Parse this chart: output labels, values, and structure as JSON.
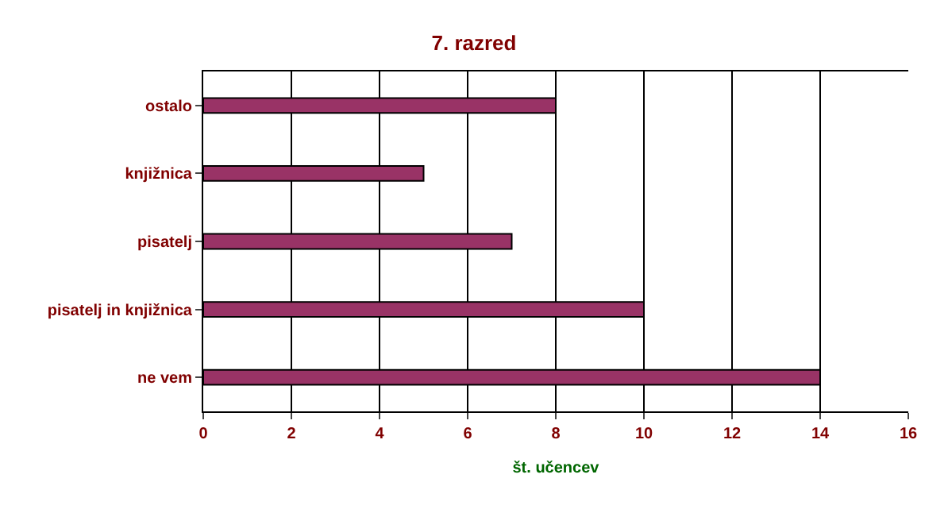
{
  "chart_data": {
    "type": "bar",
    "orientation": "horizontal",
    "title": "7. razred",
    "xlabel": "št. učencev",
    "categories": [
      "ostalo",
      "knjižnica",
      "pisatelj",
      "pisatelj in knjižnica",
      "ne vem"
    ],
    "values": [
      8,
      5,
      7,
      10,
      14
    ],
    "color": "#993366",
    "xlim": [
      0,
      16
    ],
    "xticks": [
      0,
      2,
      4,
      6,
      8,
      10,
      12,
      14,
      16
    ],
    "grid": "x"
  }
}
